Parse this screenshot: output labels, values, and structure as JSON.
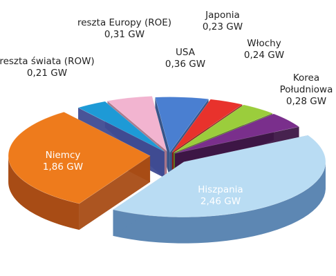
{
  "chart_data": {
    "type": "pie",
    "unit": "GW",
    "title": "",
    "legend": "none",
    "slices": [
      {
        "name": "USA",
        "value": 0.36,
        "value_text": "0,36 GW",
        "color": "#4a7fd1",
        "side": "#2c4c83"
      },
      {
        "name": "Japonia",
        "value": 0.23,
        "value_text": "0,23 GW",
        "color": "#e8322c",
        "side": "#8a1c19"
      },
      {
        "name": "Włochy",
        "value": 0.24,
        "value_text": "0,24 GW",
        "color": "#9bcd3c",
        "side": "#5c7a22"
      },
      {
        "name": "Korea Południowa",
        "value": 0.28,
        "value_text": "0,28 GW",
        "color": "#7a2f8c",
        "side": "#3d1646"
      },
      {
        "name": "Hiszpania",
        "value": 2.46,
        "value_text": "2,46 GW",
        "color": "#b9dcf3",
        "side": "#5d87b3"
      },
      {
        "name": "Niemcy",
        "value": 1.86,
        "value_text": "1,86 GW",
        "color": "#ee7b1c",
        "side": "#a84c15"
      },
      {
        "name": "reszta świata (ROW)",
        "value": 0.21,
        "value_text": "0,21 GW",
        "color": "#1e9ad6",
        "side": "#3f4b92"
      },
      {
        "name": "reszta Europy (ROE)",
        "value": 0.31,
        "value_text": "0,31 GW",
        "color": "#f2b4d0",
        "side": "#a77489"
      }
    ]
  }
}
